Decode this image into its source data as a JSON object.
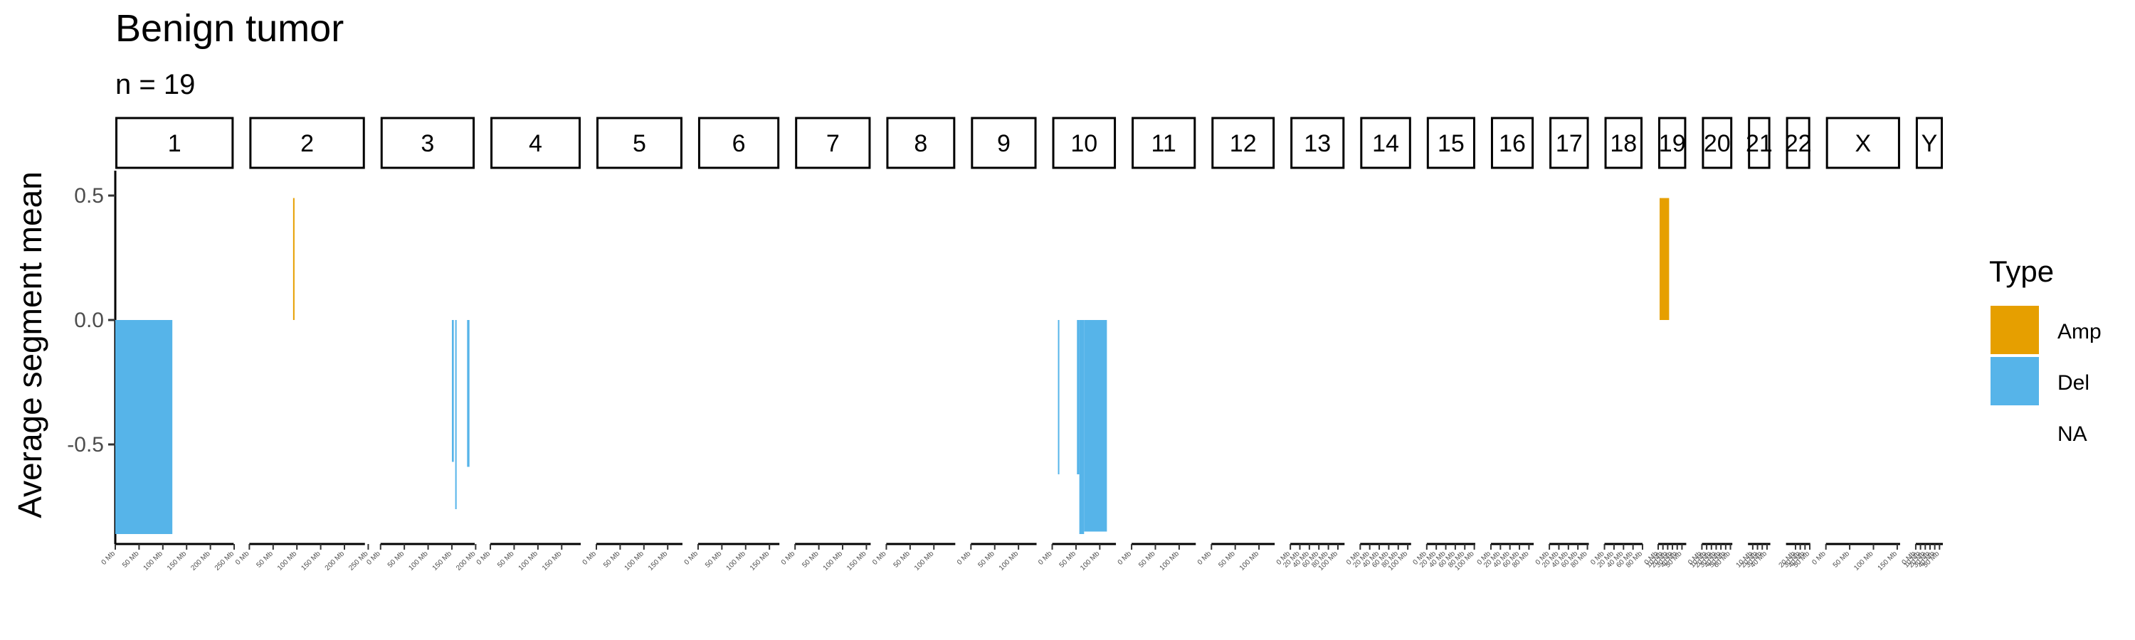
{
  "colors": {
    "amp": "#E69F00",
    "del": "#56B4E9",
    "axis": "#000000"
  },
  "chart_data": {
    "type": "bar",
    "title": "Benign tumor",
    "subtitle": "n = 19",
    "ylabel": "Average segment mean",
    "xlabel": "",
    "ylim": [
      -0.9,
      0.6
    ],
    "yticks": [
      0.5,
      0.0,
      -0.5
    ],
    "ytick_labels": [
      "0.5",
      "0.0",
      "-0.5"
    ],
    "grid": false,
    "legend": {
      "title": "Type",
      "entries": [
        "Amp",
        "Del",
        "NA"
      ],
      "placement": "right"
    },
    "chromosomes": [
      {
        "name": "1",
        "length_mb": 249,
        "ticks": [
          "0 Mb",
          "50 Mb",
          "100 Mb",
          "150 Mb",
          "200 Mb",
          "250 Mb"
        ]
      },
      {
        "name": "2",
        "length_mb": 243,
        "ticks": [
          "0 Mb",
          "50 Mb",
          "100 Mb",
          "150 Mb",
          "200 Mb",
          "250 Mb"
        ]
      },
      {
        "name": "3",
        "length_mb": 198,
        "ticks": [
          "0 Mb",
          "50 Mb",
          "100 Mb",
          "150 Mb",
          "200 Mb"
        ]
      },
      {
        "name": "4",
        "length_mb": 190,
        "ticks": [
          "0 Mb",
          "50 Mb",
          "100 Mb",
          "150 Mb"
        ]
      },
      {
        "name": "5",
        "length_mb": 181,
        "ticks": [
          "0 Mb",
          "50 Mb",
          "100 Mb",
          "150 Mb"
        ]
      },
      {
        "name": "6",
        "length_mb": 171,
        "ticks": [
          "0 Mb",
          "50 Mb",
          "100 Mb",
          "150 Mb"
        ]
      },
      {
        "name": "7",
        "length_mb": 159,
        "ticks": [
          "0 Mb",
          "50 Mb",
          "100 Mb",
          "150 Mb"
        ]
      },
      {
        "name": "8",
        "length_mb": 145,
        "ticks": [
          "0 Mb",
          "50 Mb",
          "100 Mb"
        ]
      },
      {
        "name": "9",
        "length_mb": 138,
        "ticks": [
          "0 Mb",
          "50 Mb",
          "100 Mb"
        ]
      },
      {
        "name": "10",
        "length_mb": 134,
        "ticks": [
          "0 Mb",
          "50 Mb",
          "100 Mb"
        ]
      },
      {
        "name": "11",
        "length_mb": 135,
        "ticks": [
          "0 Mb",
          "50 Mb",
          "100 Mb"
        ]
      },
      {
        "name": "12",
        "length_mb": 133,
        "ticks": [
          "0 Mb",
          "50 Mb",
          "100 Mb"
        ]
      },
      {
        "name": "13",
        "length_mb": 114,
        "ticks": [
          "0 Mb",
          "20 Mb",
          "40 Mb",
          "60 Mb",
          "80 Mb",
          "100 Mb"
        ]
      },
      {
        "name": "14",
        "length_mb": 107,
        "ticks": [
          "0 Mb",
          "20 Mb",
          "40 Mb",
          "60 Mb",
          "80 Mb",
          "100 Mb"
        ]
      },
      {
        "name": "15",
        "length_mb": 102,
        "ticks": [
          "0 Mb",
          "20 Mb",
          "40 Mb",
          "60 Mb",
          "80 Mb",
          "100 Mb"
        ]
      },
      {
        "name": "16",
        "length_mb": 90,
        "ticks": [
          "0 Mb",
          "20 Mb",
          "40 Mb",
          "60 Mb",
          "80 Mb"
        ]
      },
      {
        "name": "17",
        "length_mb": 83,
        "ticks": [
          "0 Mb",
          "20 Mb",
          "40 Mb",
          "60 Mb",
          "80 Mb"
        ]
      },
      {
        "name": "18",
        "length_mb": 80,
        "ticks": [
          "0 Mb",
          "20 Mb",
          "40 Mb",
          "60 Mb",
          "80 Mb"
        ]
      },
      {
        "name": "19",
        "length_mb": 59,
        "ticks": [
          "0 Mb",
          "10 Mb",
          "20 Mb",
          "30 Mb",
          "40 Mb",
          "50 Mb"
        ]
      },
      {
        "name": "20",
        "length_mb": 64,
        "ticks": [
          "0 Mb",
          "10 Mb",
          "20 Mb",
          "30 Mb",
          "40 Mb",
          "50 Mb",
          "60 Mb"
        ]
      },
      {
        "name": "21",
        "length_mb": 47,
        "ticks": [
          "10 Mb",
          "20 Mb",
          "30 Mb",
          "40 Mb"
        ]
      },
      {
        "name": "22",
        "length_mb": 51,
        "ticks": [
          "20 Mb",
          "30 Mb",
          "40 Mb",
          "50 Mb"
        ]
      },
      {
        "name": "X",
        "length_mb": 156,
        "ticks": [
          "0 Mb",
          "50 Mb",
          "100 Mb",
          "150 Mb"
        ]
      },
      {
        "name": "Y",
        "length_mb": 57,
        "ticks": [
          "0 Mb",
          "10 Mb",
          "20 Mb",
          "30 Mb",
          "40 Mb",
          "50 Mb"
        ]
      }
    ],
    "segments": [
      {
        "chr": "1",
        "start_mb": 0,
        "end_mb": 120,
        "value": -0.86,
        "type": "Del"
      },
      {
        "chr": "2",
        "start_mb": 92,
        "end_mb": 93,
        "value": 0.49,
        "type": "Amp"
      },
      {
        "chr": "3",
        "start_mb": 150,
        "end_mb": 154,
        "value": -0.57,
        "type": "Del"
      },
      {
        "chr": "3",
        "start_mb": 157,
        "end_mb": 158,
        "value": -0.76,
        "type": "Del"
      },
      {
        "chr": "3",
        "start_mb": 182,
        "end_mb": 187,
        "value": -0.59,
        "type": "Del"
      },
      {
        "chr": "10",
        "start_mb": 12,
        "end_mb": 13,
        "value": -0.62,
        "type": "Del"
      },
      {
        "chr": "10",
        "start_mb": 52,
        "end_mb": 57,
        "value": -0.62,
        "type": "Del"
      },
      {
        "chr": "10",
        "start_mb": 57,
        "end_mb": 67,
        "value": -0.86,
        "type": "Del"
      },
      {
        "chr": "10",
        "start_mb": 67,
        "end_mb": 115,
        "value": -0.85,
        "type": "Del"
      },
      {
        "chr": "19",
        "start_mb": 3,
        "end_mb": 23,
        "value": 0.49,
        "type": "Amp"
      }
    ]
  }
}
